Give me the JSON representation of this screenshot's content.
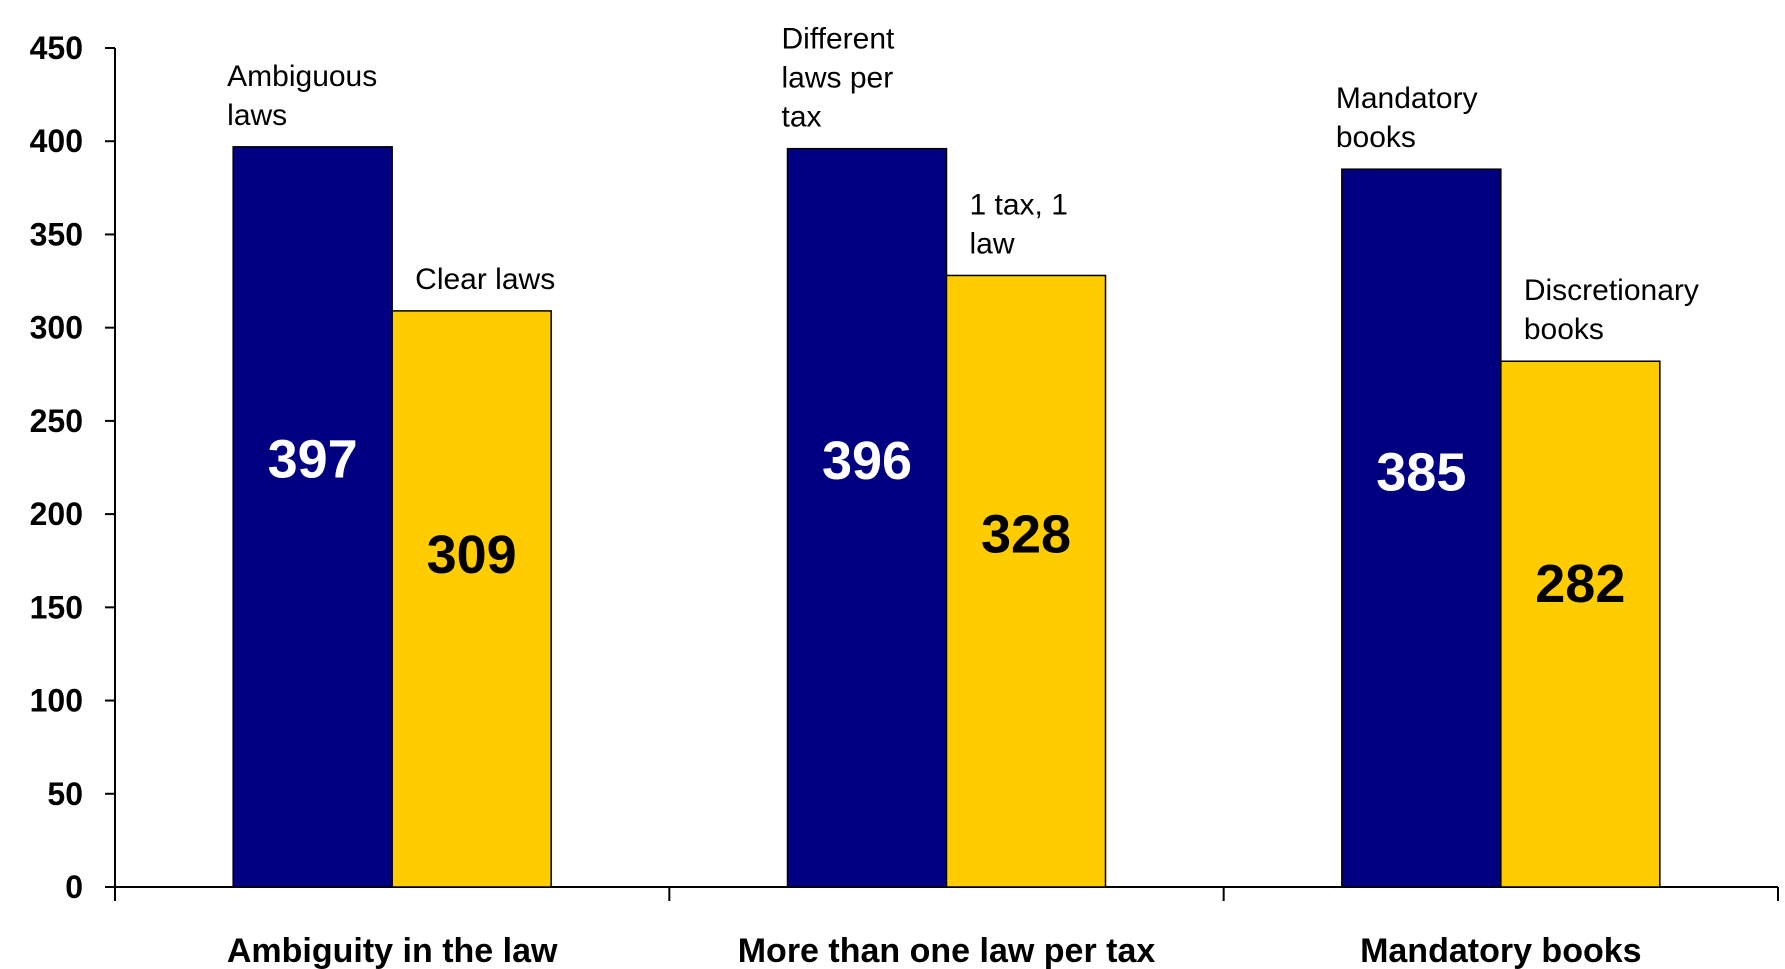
{
  "chart_data": {
    "type": "bar",
    "categories": [
      "Ambiguity in the law",
      "More than one law per tax",
      "Mandatory books"
    ],
    "series": [
      {
        "values": [
          397,
          396,
          385
        ],
        "bar_labels": [
          [
            "Ambiguous",
            "laws"
          ],
          [
            "Different",
            "laws per",
            "tax"
          ],
          [
            "Mandatory",
            "books"
          ]
        ],
        "color": "#000080",
        "value_label_color": "#ffffff"
      },
      {
        "values": [
          309,
          328,
          282
        ],
        "bar_labels": [
          [
            "Clear laws"
          ],
          [
            "1 tax, 1",
            "law"
          ],
          [
            "Discretionary",
            "books"
          ]
        ],
        "color": "#FFCC00",
        "value_label_color": "#000000"
      }
    ],
    "ylim": [
      0,
      450
    ],
    "yticks": [
      0,
      50,
      100,
      150,
      200,
      250,
      300,
      350,
      400,
      450
    ],
    "grid": false,
    "legend": "none"
  }
}
